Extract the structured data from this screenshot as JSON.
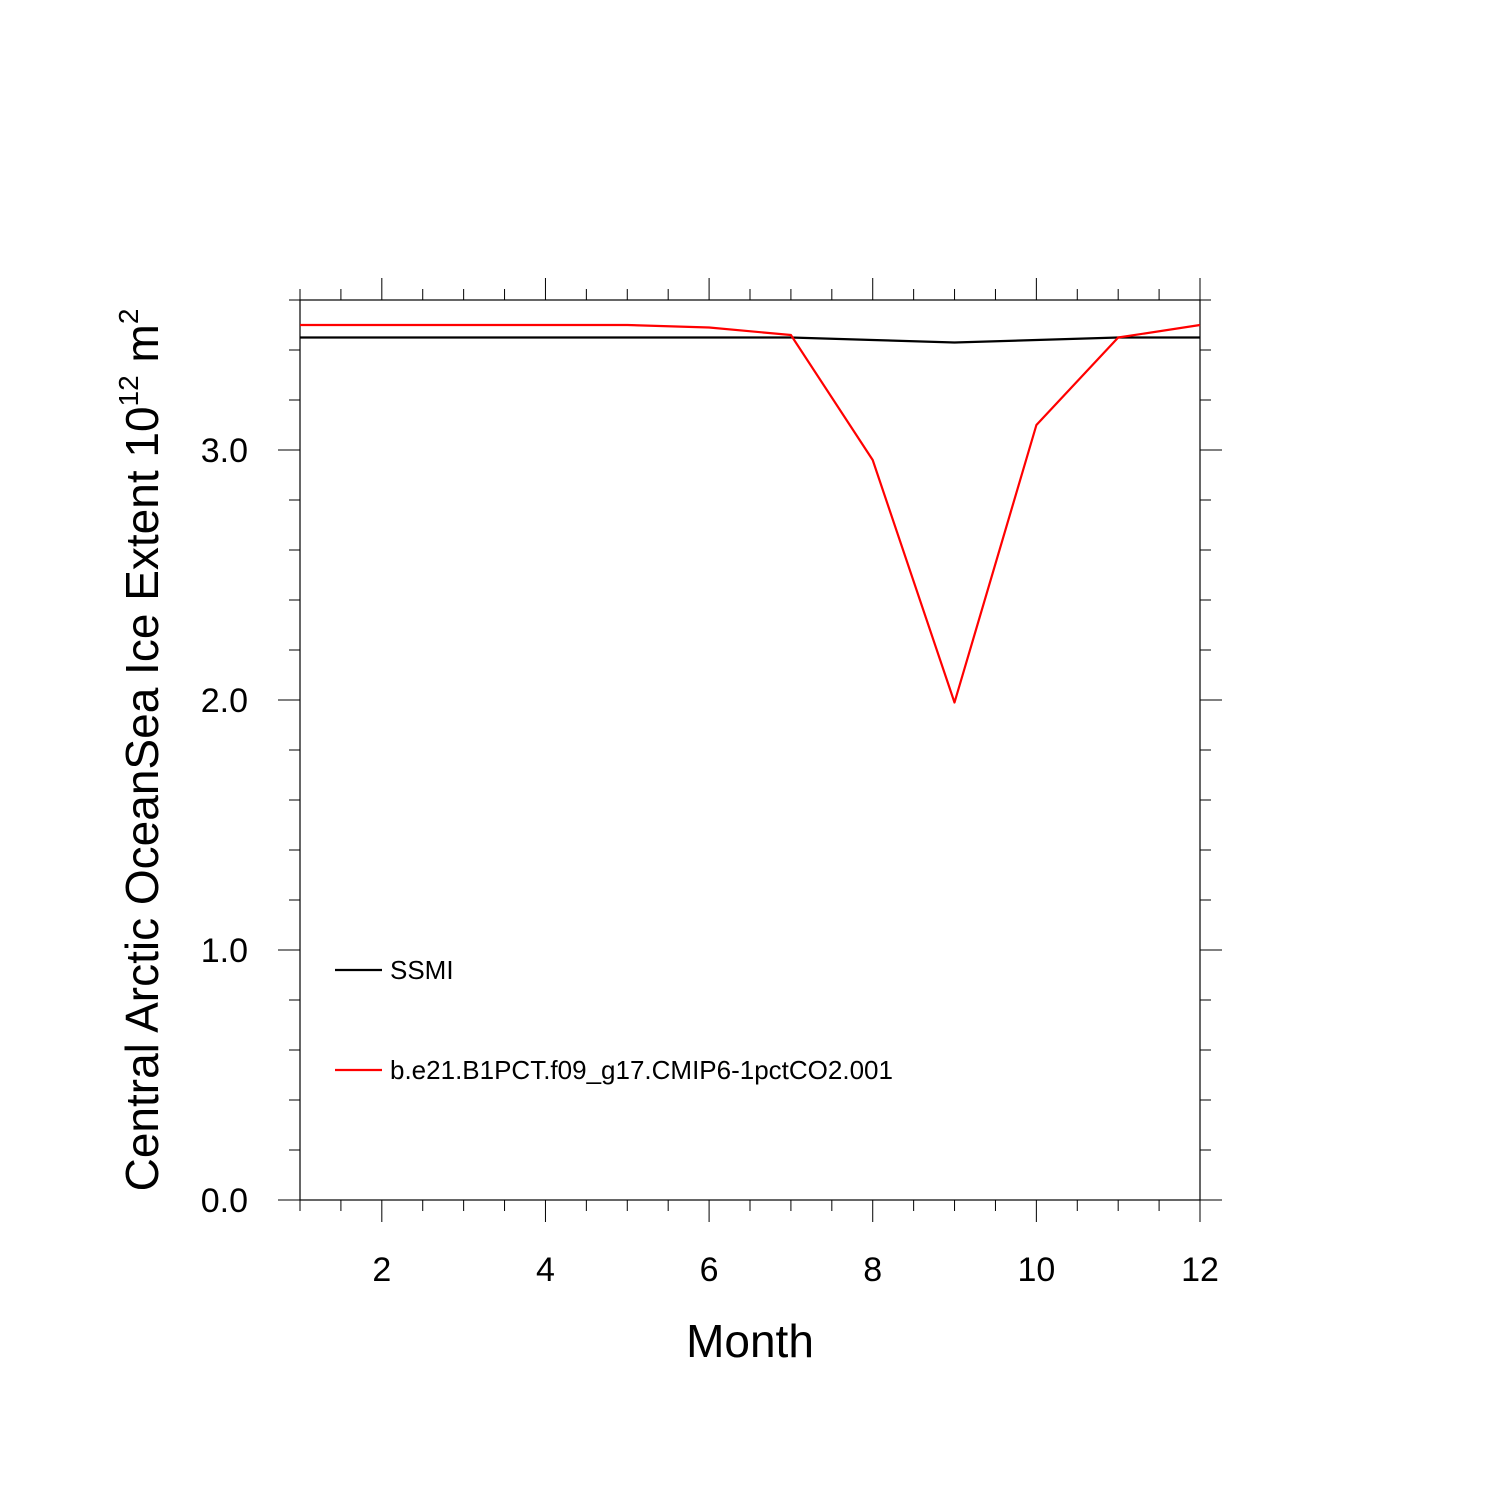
{
  "chart_data": {
    "type": "line",
    "title": "",
    "xlabel": "Month",
    "ylabel": "Central Arctic OceanSea Ice Extent 10",
    "ylabel_superscript": "12",
    "ylabel_unit": " m",
    "ylabel_unit_superscript": "2",
    "xlim": [
      1,
      12
    ],
    "ylim": [
      0,
      3.6
    ],
    "x_ticks": [
      2,
      4,
      6,
      8,
      10,
      12
    ],
    "x_tick_labels": [
      "2",
      "4",
      "6",
      "8",
      "10",
      "12"
    ],
    "y_ticks": [
      0,
      1,
      2,
      3
    ],
    "y_tick_labels": [
      "0.0",
      "1.0",
      "2.0",
      "3.0"
    ],
    "grid": false,
    "legend_position": "bottom-left",
    "x": [
      1,
      2,
      3,
      4,
      5,
      6,
      7,
      8,
      9,
      10,
      11,
      12
    ],
    "series": [
      {
        "name": "SSMI",
        "color": "#000000",
        "values": [
          3.45,
          3.45,
          3.45,
          3.45,
          3.45,
          3.45,
          3.45,
          3.44,
          3.43,
          3.44,
          3.45,
          3.45
        ]
      },
      {
        "name": "b.e21.B1PCT.f09_g17.CMIP6-1pctCO2.001",
        "color": "#ff0000",
        "values": [
          3.5,
          3.5,
          3.5,
          3.5,
          3.5,
          3.49,
          3.46,
          2.96,
          1.99,
          3.1,
          3.45,
          3.5
        ]
      }
    ]
  }
}
